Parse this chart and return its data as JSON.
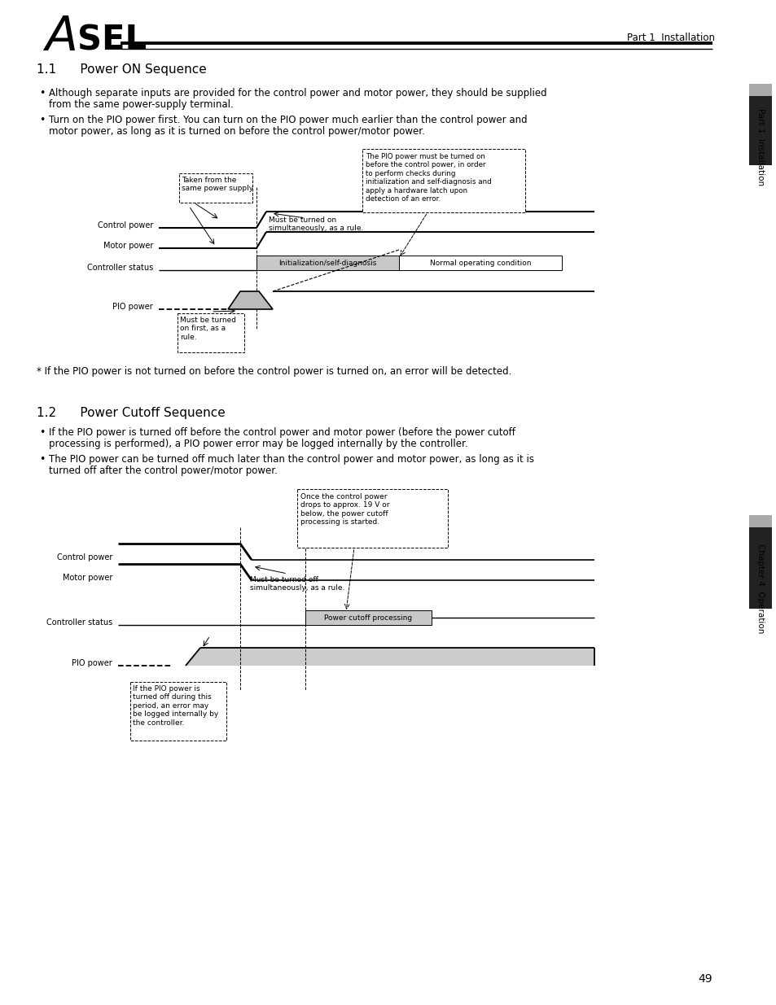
{
  "page_bg": "#ffffff",
  "title_text": "Part 1  Installation",
  "section1_title": "1.1      Power ON Sequence",
  "section2_title": "1.2      Power Cutoff Sequence",
  "bullet1_1a": "Although separate inputs are provided for the control power and motor power, they should be supplied",
  "bullet1_1b": "from the same power-supply terminal.",
  "bullet1_2a": "Turn on the PIO power first. You can turn on the PIO power much earlier than the control power and",
  "bullet1_2b": "motor power, as long as it is turned on before the control power/motor power.",
  "footnote1": "* If the PIO power is not turned on before the control power is turned on, an error will be detected.",
  "bullet2_1a": "If the PIO power is turned off before the control power and motor power (before the power cutoff",
  "bullet2_1b": "processing is performed), a PIO power error may be logged internally by the controller.",
  "bullet2_2a": "The PIO power can be turned off much later than the control power and motor power, as long as it is",
  "bullet2_2b": "turned off after the control power/motor power.",
  "page_number": "49",
  "sidebar1_text": "Part 1  Installation",
  "sidebar2_text": "Chapter 4  Operation"
}
